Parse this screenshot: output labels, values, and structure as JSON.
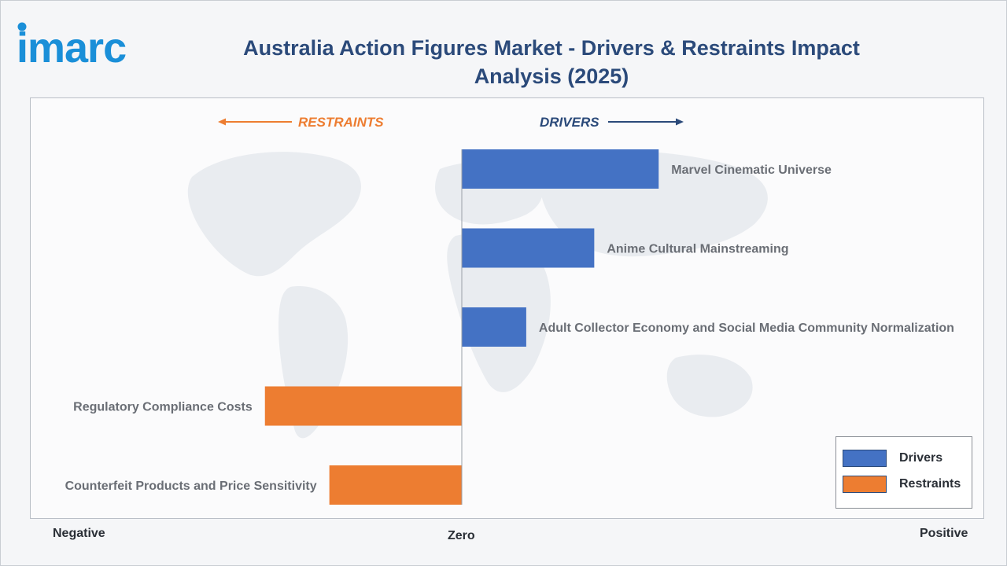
{
  "header": {
    "logo_text": "imarc",
    "title_line1": "Australia Action Figures Market - Drivers & Restraints Impact",
    "title_line2": "Analysis (2025)"
  },
  "colors": {
    "drivers": "#4472c4",
    "restraints": "#ed7d31",
    "title": "#2b4a7a",
    "logo": "#1a8fd8"
  },
  "directions": {
    "restraints_label": "RESTRAINTS",
    "drivers_label": "DRIVERS"
  },
  "axis": {
    "negative": "Negative",
    "zero": "Zero",
    "positive": "Positive"
  },
  "legend": {
    "drivers": "Drivers",
    "restraints": "Restraints"
  },
  "chart_data": {
    "type": "bar",
    "orientation": "horizontal",
    "title": "Australia Action Figures Market - Drivers & Restraints Impact Analysis (2025)",
    "xlim": [
      -1,
      1
    ],
    "categories": [
      "Marvel Cinematic Universe",
      "Anime Cultural Mainstreaming",
      "Adult Collector Economy and Social Media Community Normalization",
      "Regulatory Compliance Costs",
      "Counterfeit Products and Price Sensitivity"
    ],
    "series": [
      {
        "name": "Drivers",
        "values": [
          0.55,
          0.37,
          0.18,
          null,
          null
        ]
      },
      {
        "name": "Restraints",
        "values": [
          null,
          null,
          null,
          -0.55,
          -0.37
        ]
      }
    ],
    "legend": "bottom-right",
    "grid": false
  }
}
